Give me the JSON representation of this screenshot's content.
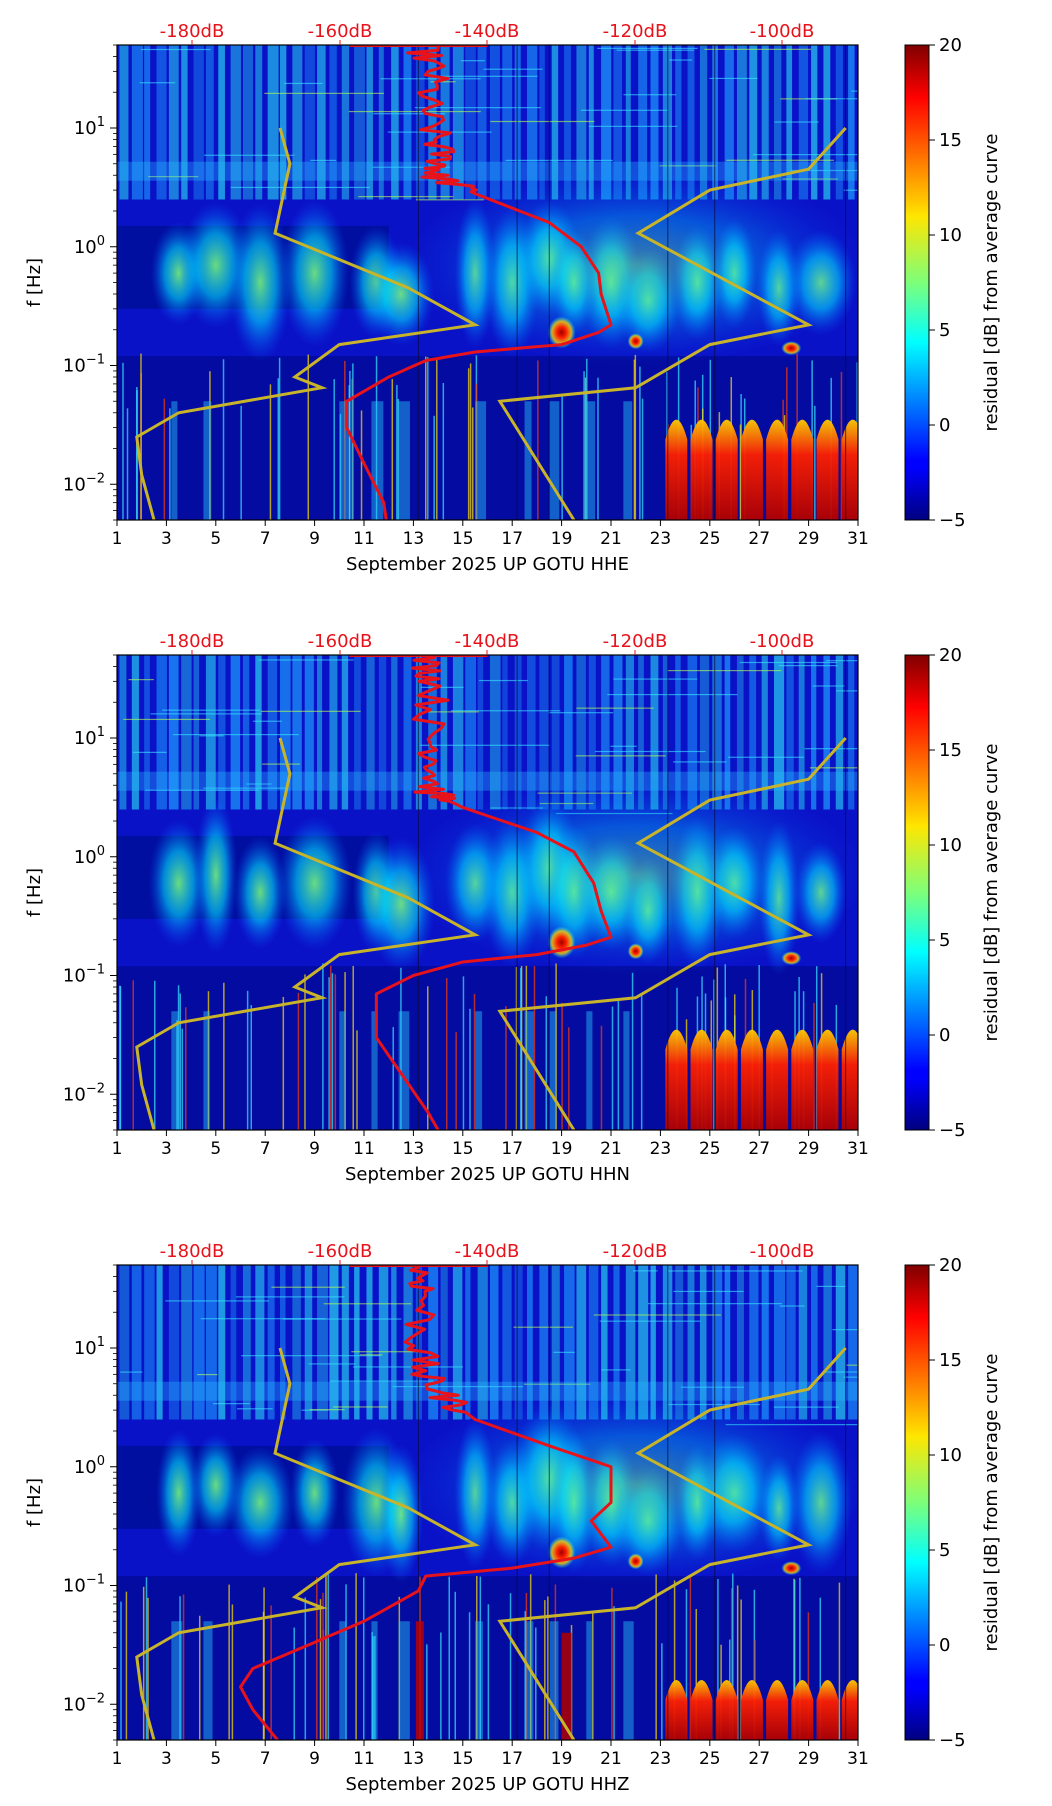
{
  "chart_data": [
    {
      "type": "heatmap",
      "xlabel": "September 2025 UP GOTU  HHE",
      "ylabel": "f [Hz]",
      "x_ticks": [
        "1",
        "3",
        "5",
        "7",
        "9",
        "11",
        "13",
        "15",
        "17",
        "19",
        "21",
        "23",
        "25",
        "27",
        "29",
        "31"
      ],
      "xlim": [
        1,
        31
      ],
      "y_scale": "log",
      "ylim": [
        0.005,
        50
      ],
      "y_ticks": [
        {
          "base": "10",
          "exp": "1",
          "value": 10
        },
        {
          "base": "10",
          "exp": "0",
          "value": 1
        },
        {
          "base": "10",
          "exp": "−1",
          "value": 0.1
        },
        {
          "base": "10",
          "exp": "−2",
          "value": 0.01
        }
      ],
      "top_axis_labels": [
        "-180dB",
        "-160dB",
        "-140dB",
        "-120dB",
        "-100dB"
      ],
      "top_axis_values_db": [
        -180,
        -160,
        -140,
        -120,
        -100
      ],
      "colorbar": {
        "label": "residual [dB] from average curve",
        "ticks": [
          "20",
          "15",
          "10",
          "5",
          "0",
          "−5"
        ],
        "tick_values": [
          20,
          15,
          10,
          5,
          0,
          -5
        ],
        "range": [
          -5,
          20
        ],
        "colormap": "jet"
      },
      "red_curve": {
        "color": "#e8121b",
        "points": [
          [
            13.3,
            50
          ],
          [
            13.8,
            30
          ],
          [
            13.5,
            15
          ],
          [
            13.9,
            8
          ],
          [
            14.2,
            5
          ],
          [
            13.8,
            4
          ],
          [
            15.5,
            2.8
          ],
          [
            18.5,
            1.6
          ],
          [
            19.8,
            1.0
          ],
          [
            20.5,
            0.6
          ],
          [
            20.6,
            0.4
          ],
          [
            21.0,
            0.22
          ],
          [
            20.5,
            0.19
          ],
          [
            19.0,
            0.15
          ],
          [
            15.5,
            0.13
          ],
          [
            13.5,
            0.11
          ],
          [
            12.0,
            0.08
          ],
          [
            10.3,
            0.05
          ],
          [
            10.3,
            0.03
          ],
          [
            11.0,
            0.015
          ],
          [
            11.8,
            0.007
          ],
          [
            11.9,
            0.005
          ]
        ]
      },
      "gold_curve": {
        "color": "#c8b42a",
        "points": [
          [
            7.6,
            10
          ],
          [
            8.0,
            5
          ],
          [
            7.4,
            1.3
          ],
          [
            12.8,
            0.45
          ],
          [
            15.5,
            0.22
          ],
          [
            10.0,
            0.15
          ],
          [
            8.2,
            0.08
          ],
          [
            9.3,
            0.065
          ],
          [
            3.5,
            0.04
          ],
          [
            1.8,
            0.025
          ],
          [
            2.0,
            0.012
          ],
          [
            2.5,
            0.005
          ]
        ]
      },
      "gold_curve_right": {
        "points": [
          [
            30.5,
            10
          ],
          [
            29.0,
            4.5
          ],
          [
            25.0,
            3.0
          ],
          [
            22.1,
            1.3
          ],
          [
            29.0,
            0.22
          ],
          [
            25.0,
            0.15
          ],
          [
            22.0,
            0.065
          ],
          [
            16.5,
            0.05
          ],
          [
            19.5,
            0.005
          ]
        ]
      }
    },
    {
      "type": "heatmap",
      "xlabel": "September 2025 UP GOTU  HHN",
      "ylabel": "f [Hz]",
      "x_ticks": [
        "1",
        "3",
        "5",
        "7",
        "9",
        "11",
        "13",
        "15",
        "17",
        "19",
        "21",
        "23",
        "25",
        "27",
        "29",
        "31"
      ],
      "xlim": [
        1,
        31
      ],
      "y_scale": "log",
      "ylim": [
        0.005,
        50
      ],
      "y_ticks": [
        {
          "base": "10",
          "exp": "1",
          "value": 10
        },
        {
          "base": "10",
          "exp": "0",
          "value": 1
        },
        {
          "base": "10",
          "exp": "−1",
          "value": 0.1
        },
        {
          "base": "10",
          "exp": "−2",
          "value": 0.01
        }
      ],
      "top_axis_labels": [
        "-180dB",
        "-160dB",
        "-140dB",
        "-120dB",
        "-100dB"
      ],
      "top_axis_values_db": [
        -180,
        -160,
        -140,
        -120,
        -100
      ],
      "colorbar": {
        "label": "residual [dB] from average curve",
        "ticks": [
          "20",
          "15",
          "10",
          "5",
          "0",
          "−5"
        ],
        "tick_values": [
          20,
          15,
          10,
          5,
          0,
          -5
        ],
        "range": [
          -5,
          20
        ],
        "colormap": "jet"
      },
      "red_curve": {
        "color": "#e8121b",
        "points": [
          [
            13.3,
            50
          ],
          [
            13.9,
            30
          ],
          [
            13.6,
            12
          ],
          [
            14.0,
            6
          ],
          [
            13.7,
            3.5
          ],
          [
            15.0,
            2.6
          ],
          [
            18.0,
            1.6
          ],
          [
            19.5,
            1.1
          ],
          [
            20.3,
            0.6
          ],
          [
            20.6,
            0.35
          ],
          [
            21.0,
            0.21
          ],
          [
            20.0,
            0.18
          ],
          [
            18.0,
            0.15
          ],
          [
            15.0,
            0.13
          ],
          [
            13.0,
            0.1
          ],
          [
            11.5,
            0.07
          ],
          [
            11.5,
            0.03
          ],
          [
            12.5,
            0.015
          ],
          [
            13.6,
            0.007
          ],
          [
            14.0,
            0.005
          ]
        ]
      },
      "gold_curve": {
        "color": "#c8b42a",
        "points": [
          [
            7.6,
            10
          ],
          [
            8.0,
            5
          ],
          [
            7.4,
            1.3
          ],
          [
            12.8,
            0.45
          ],
          [
            15.5,
            0.22
          ],
          [
            10.0,
            0.15
          ],
          [
            8.2,
            0.08
          ],
          [
            9.3,
            0.065
          ],
          [
            3.5,
            0.04
          ],
          [
            1.8,
            0.025
          ],
          [
            2.0,
            0.012
          ],
          [
            2.5,
            0.005
          ]
        ]
      },
      "gold_curve_right": {
        "points": [
          [
            30.5,
            10
          ],
          [
            29.0,
            4.5
          ],
          [
            25.0,
            3.0
          ],
          [
            22.1,
            1.3
          ],
          [
            29.0,
            0.22
          ],
          [
            25.0,
            0.15
          ],
          [
            22.0,
            0.065
          ],
          [
            16.5,
            0.05
          ],
          [
            19.5,
            0.005
          ]
        ]
      }
    },
    {
      "type": "heatmap",
      "xlabel": "September 2025 UP GOTU  HHZ",
      "ylabel": "f [Hz]",
      "x_ticks": [
        "1",
        "3",
        "5",
        "7",
        "9",
        "11",
        "13",
        "15",
        "17",
        "19",
        "21",
        "23",
        "25",
        "27",
        "29",
        "31"
      ],
      "xlim": [
        1,
        31
      ],
      "y_scale": "log",
      "ylim": [
        0.005,
        50
      ],
      "y_ticks": [
        {
          "base": "10",
          "exp": "1",
          "value": 10
        },
        {
          "base": "10",
          "exp": "0",
          "value": 1
        },
        {
          "base": "10",
          "exp": "−1",
          "value": 0.1
        },
        {
          "base": "10",
          "exp": "−2",
          "value": 0.01
        }
      ],
      "top_axis_labels": [
        "-180dB",
        "-160dB",
        "-140dB",
        "-120dB",
        "-100dB"
      ],
      "top_axis_values_db": [
        -180,
        -160,
        -140,
        -120,
        -100
      ],
      "colorbar": {
        "label": "residual [dB] from average curve",
        "ticks": [
          "20",
          "15",
          "10",
          "5",
          "0",
          "−5"
        ],
        "tick_values": [
          20,
          15,
          10,
          5,
          0,
          -5
        ],
        "range": [
          -5,
          20
        ],
        "colormap": "jet"
      },
      "red_curve": {
        "color": "#e8121b",
        "points": [
          [
            13.2,
            50
          ],
          [
            13.5,
            30
          ],
          [
            13.2,
            12
          ],
          [
            13.4,
            6
          ],
          [
            14.2,
            4
          ],
          [
            15.5,
            2.5
          ],
          [
            18.5,
            1.5
          ],
          [
            21.0,
            1.0
          ],
          [
            21.0,
            0.5
          ],
          [
            20.2,
            0.35
          ],
          [
            21.0,
            0.21
          ],
          [
            19.5,
            0.17
          ],
          [
            17.0,
            0.14
          ],
          [
            13.5,
            0.12
          ],
          [
            13.2,
            0.09
          ],
          [
            11.0,
            0.05
          ],
          [
            8.5,
            0.03
          ],
          [
            6.5,
            0.02
          ],
          [
            6.0,
            0.014
          ],
          [
            6.5,
            0.009
          ],
          [
            7.5,
            0.005
          ]
        ]
      },
      "gold_curve": {
        "color": "#c8b42a",
        "points": [
          [
            7.6,
            10
          ],
          [
            8.0,
            5
          ],
          [
            7.4,
            1.3
          ],
          [
            12.8,
            0.45
          ],
          [
            15.5,
            0.22
          ],
          [
            10.0,
            0.15
          ],
          [
            8.2,
            0.08
          ],
          [
            9.3,
            0.065
          ],
          [
            3.5,
            0.04
          ],
          [
            1.8,
            0.025
          ],
          [
            2.0,
            0.012
          ],
          [
            2.5,
            0.005
          ]
        ]
      },
      "gold_curve_right": {
        "points": [
          [
            30.5,
            10
          ],
          [
            29.0,
            4.5
          ],
          [
            25.0,
            3.0
          ],
          [
            22.1,
            1.3
          ],
          [
            29.0,
            0.22
          ],
          [
            25.0,
            0.15
          ],
          [
            22.0,
            0.065
          ],
          [
            16.5,
            0.05
          ],
          [
            19.5,
            0.005
          ]
        ]
      }
    }
  ]
}
